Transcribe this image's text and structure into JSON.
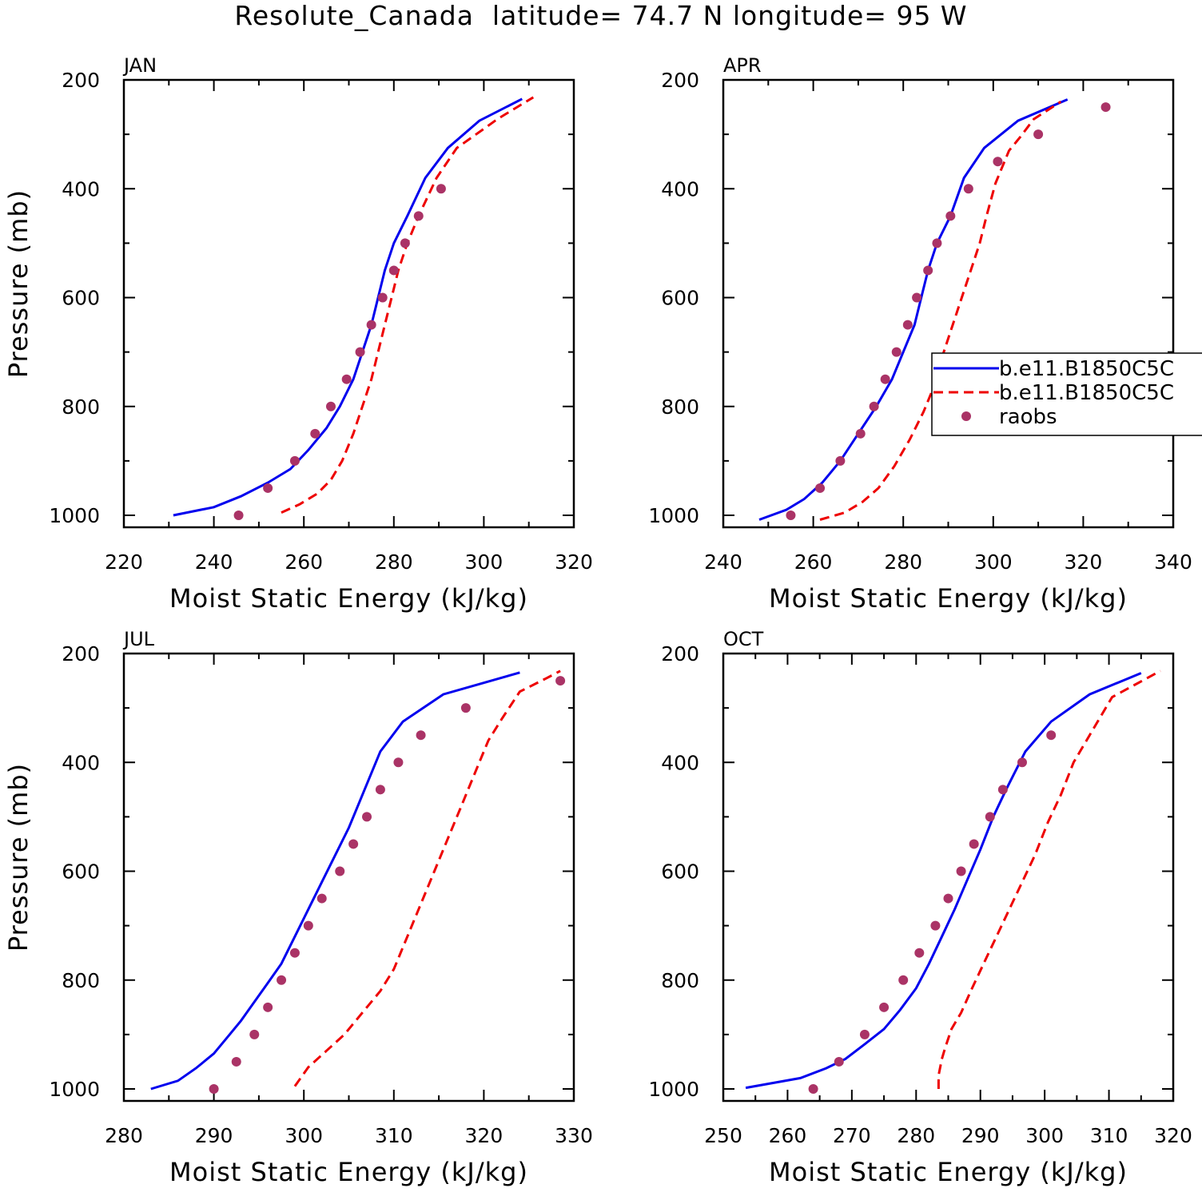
{
  "title": "Resolute_Canada  latitude= 74.7 N longitude= 95 W",
  "colors": {
    "model1": "#0000ee",
    "model2": "#ee0000",
    "raobs": "#aa3366"
  },
  "legend": {
    "entries": [
      {
        "label": "b.e11.B1850C5C",
        "style": "solid",
        "color": "#0000ee"
      },
      {
        "label": "b.e11.B1850C5C",
        "style": "dashed",
        "color": "#ee0000"
      },
      {
        "label": "raobs",
        "style": "marker",
        "color": "#aa3366"
      }
    ]
  },
  "chart_data": [
    {
      "type": "line",
      "panel_label": "JAN",
      "xlabel": "Moist Static Energy (kJ/kg)",
      "ylabel": "Pressure (mb)",
      "xlim": [
        220,
        320
      ],
      "ylim": [
        1000,
        200
      ],
      "xticks": [
        220,
        240,
        260,
        280,
        300,
        320
      ],
      "yticks": [
        200,
        400,
        600,
        800,
        1000
      ],
      "series": [
        {
          "style": "solid",
          "color": "#0000ee",
          "points": [
            [
              231,
              1000
            ],
            [
              240,
              985
            ],
            [
              246,
              965
            ],
            [
              252,
              940
            ],
            [
              257,
              915
            ],
            [
              261,
              880
            ],
            [
              265,
              840
            ],
            [
              268,
              800
            ],
            [
              271,
              750
            ],
            [
              273,
              700
            ],
            [
              275,
              650
            ],
            [
              276.5,
              600
            ],
            [
              278,
              550
            ],
            [
              280,
              500
            ],
            [
              283,
              450
            ],
            [
              287,
              380
            ],
            [
              292,
              325
            ],
            [
              299,
              275
            ],
            [
              308.5,
              235
            ]
          ]
        },
        {
          "style": "dashed",
          "color": "#ee0000",
          "points": [
            [
              255,
              995
            ],
            [
              259,
              980
            ],
            [
              263,
              960
            ],
            [
              266,
              935
            ],
            [
              268.5,
              900
            ],
            [
              271,
              850
            ],
            [
              273,
              800
            ],
            [
              275,
              750
            ],
            [
              276.5,
              700
            ],
            [
              278,
              650
            ],
            [
              279.5,
              600
            ],
            [
              281,
              550
            ],
            [
              283,
              500
            ],
            [
              285.5,
              450
            ],
            [
              289.5,
              380
            ],
            [
              294,
              325
            ],
            [
              300,
              290
            ],
            [
              303,
              272
            ],
            [
              311,
              232
            ]
          ]
        },
        {
          "style": "marker",
          "color": "#aa3366",
          "points": [
            [
              245.5,
              1000
            ],
            [
              252,
              950
            ],
            [
              258,
              900
            ],
            [
              262.5,
              850
            ],
            [
              266,
              800
            ],
            [
              269.5,
              750
            ],
            [
              272.5,
              700
            ],
            [
              275,
              650
            ],
            [
              277.5,
              600
            ],
            [
              280,
              550
            ],
            [
              282.5,
              500
            ],
            [
              285.5,
              450
            ],
            [
              290.5,
              400
            ]
          ]
        }
      ]
    },
    {
      "type": "line",
      "panel_label": "APR",
      "xlabel": "Moist Static Energy (kJ/kg)",
      "ylabel": "",
      "xlim": [
        240,
        340
      ],
      "ylim": [
        1000,
        200
      ],
      "xticks": [
        240,
        260,
        280,
        300,
        320,
        340
      ],
      "yticks": [
        200,
        400,
        600,
        800,
        1000
      ],
      "series": [
        {
          "style": "solid",
          "color": "#0000ee",
          "points": [
            [
              248,
              1008
            ],
            [
              254,
              990
            ],
            [
              258,
              970
            ],
            [
              262,
              940
            ],
            [
              266,
              900
            ],
            [
              270,
              850
            ],
            [
              274,
              800
            ],
            [
              277.5,
              750
            ],
            [
              280,
              700
            ],
            [
              282.5,
              650
            ],
            [
              284,
              600
            ],
            [
              285.5,
              550
            ],
            [
              287.5,
              500
            ],
            [
              290.5,
              450
            ],
            [
              293.5,
              380
            ],
            [
              298,
              325
            ],
            [
              305.5,
              275
            ],
            [
              316.5,
              236
            ]
          ]
        },
        {
          "style": "dashed",
          "color": "#ee0000",
          "points": [
            [
              261.5,
              1008
            ],
            [
              267,
              995
            ],
            [
              271,
              975
            ],
            [
              274.5,
              950
            ],
            [
              278,
              910
            ],
            [
              281.5,
              860
            ],
            [
              284.5,
              810
            ],
            [
              287,
              760
            ],
            [
              289,
              700
            ],
            [
              291,
              650
            ],
            [
              293,
              600
            ],
            [
              295,
              550
            ],
            [
              297,
              500
            ],
            [
              298.5,
              450
            ],
            [
              300.5,
              390
            ],
            [
              303.5,
              330
            ],
            [
              306,
              305
            ],
            [
              309,
              272
            ],
            [
              315,
              240
            ]
          ]
        },
        {
          "style": "marker",
          "color": "#aa3366",
          "points": [
            [
              255,
              1000
            ],
            [
              261.5,
              950
            ],
            [
              266,
              900
            ],
            [
              270.5,
              850
            ],
            [
              273.5,
              800
            ],
            [
              276,
              750
            ],
            [
              278.5,
              700
            ],
            [
              281,
              650
            ],
            [
              283,
              600
            ],
            [
              285.5,
              550
            ],
            [
              287.5,
              500
            ],
            [
              290.5,
              450
            ],
            [
              294.5,
              400
            ],
            [
              301,
              350
            ],
            [
              310,
              300
            ],
            [
              325,
              250
            ]
          ]
        }
      ]
    },
    {
      "type": "line",
      "panel_label": "JUL",
      "xlabel": "Moist Static Energy (kJ/kg)",
      "ylabel": "Pressure (mb)",
      "xlim": [
        280,
        330
      ],
      "ylim": [
        1000,
        200
      ],
      "xticks": [
        280,
        290,
        300,
        310,
        320,
        330
      ],
      "yticks": [
        200,
        400,
        600,
        800,
        1000
      ],
      "series": [
        {
          "style": "solid",
          "color": "#0000ee",
          "points": [
            [
              283,
              1000
            ],
            [
              286,
              985
            ],
            [
              288,
              962
            ],
            [
              290,
              935
            ],
            [
              291.5,
              905
            ],
            [
              293,
              875
            ],
            [
              294.5,
              840
            ],
            [
              296,
              805
            ],
            [
              297.5,
              770
            ],
            [
              299,
              720
            ],
            [
              300.5,
              670
            ],
            [
              302,
              620
            ],
            [
              303.5,
              570
            ],
            [
              305,
              520
            ],
            [
              306.5,
              460
            ],
            [
              308.5,
              380
            ],
            [
              311,
              325
            ],
            [
              315.5,
              275
            ],
            [
              324,
              235
            ]
          ]
        },
        {
          "style": "dashed",
          "color": "#ee0000",
          "points": [
            [
              299,
              995
            ],
            [
              300.5,
              960
            ],
            [
              302.5,
              930
            ],
            [
              304.5,
              900
            ],
            [
              306.5,
              860
            ],
            [
              308.5,
              820
            ],
            [
              310,
              780
            ],
            [
              311.5,
              720
            ],
            [
              313,
              660
            ],
            [
              314.5,
              600
            ],
            [
              316,
              540
            ],
            [
              317.5,
              480
            ],
            [
              319,
              420
            ],
            [
              320.5,
              360
            ],
            [
              322,
              320
            ],
            [
              324,
              270
            ],
            [
              327,
              245
            ],
            [
              328.5,
              232
            ]
          ]
        },
        {
          "style": "marker",
          "color": "#aa3366",
          "points": [
            [
              290,
              1000
            ],
            [
              292.5,
              950
            ],
            [
              294.5,
              900
            ],
            [
              296,
              850
            ],
            [
              297.5,
              800
            ],
            [
              299,
              750
            ],
            [
              300.5,
              700
            ],
            [
              302,
              650
            ],
            [
              304,
              600
            ],
            [
              305.5,
              550
            ],
            [
              307,
              500
            ],
            [
              308.5,
              450
            ],
            [
              310.5,
              400
            ],
            [
              313,
              350
            ],
            [
              318,
              300
            ],
            [
              328.5,
              250
            ]
          ]
        }
      ]
    },
    {
      "type": "line",
      "panel_label": "OCT",
      "xlabel": "Moist Static Energy (kJ/kg)",
      "ylabel": "",
      "xlim": [
        250,
        320
      ],
      "ylim": [
        1000,
        200
      ],
      "xticks": [
        250,
        260,
        270,
        280,
        290,
        300,
        310,
        320
      ],
      "yticks": [
        200,
        400,
        600,
        800,
        1000
      ],
      "series": [
        {
          "style": "solid",
          "color": "#0000ee",
          "points": [
            [
              253.5,
              998
            ],
            [
              262,
              980
            ],
            [
              266,
              962
            ],
            [
              269,
              945
            ],
            [
              272,
              918
            ],
            [
              275,
              890
            ],
            [
              277.5,
              855
            ],
            [
              280,
              815
            ],
            [
              282,
              770
            ],
            [
              284,
              720
            ],
            [
              286,
              670
            ],
            [
              288,
              615
            ],
            [
              290,
              560
            ],
            [
              292,
              500
            ],
            [
              294,
              450
            ],
            [
              297,
              380
            ],
            [
              301,
              325
            ],
            [
              307,
              275
            ],
            [
              315,
              236
            ]
          ]
        },
        {
          "style": "dashed",
          "color": "#ee0000",
          "points": [
            [
              283.5,
              1000
            ],
            [
              283.5,
              975
            ],
            [
              284,
              945
            ],
            [
              284.5,
              925
            ],
            [
              285.5,
              890
            ],
            [
              287,
              860
            ],
            [
              288.5,
              820
            ],
            [
              290.5,
              770
            ],
            [
              292.5,
              720
            ],
            [
              294.5,
              670
            ],
            [
              296.5,
              620
            ],
            [
              298.5,
              570
            ],
            [
              300.5,
              510
            ],
            [
              302.5,
              460
            ],
            [
              304.5,
              400
            ],
            [
              307,
              350
            ],
            [
              310.5,
              280
            ],
            [
              318,
              232
            ]
          ]
        },
        {
          "style": "marker",
          "color": "#aa3366",
          "points": [
            [
              264,
              1000
            ],
            [
              268,
              950
            ],
            [
              272,
              900
            ],
            [
              275,
              850
            ],
            [
              278,
              800
            ],
            [
              280.5,
              750
            ],
            [
              283,
              700
            ],
            [
              285,
              650
            ],
            [
              287,
              600
            ],
            [
              289,
              550
            ],
            [
              291.5,
              500
            ],
            [
              293.5,
              450
            ],
            [
              296.5,
              400
            ],
            [
              301,
              350
            ]
          ]
        }
      ]
    }
  ]
}
